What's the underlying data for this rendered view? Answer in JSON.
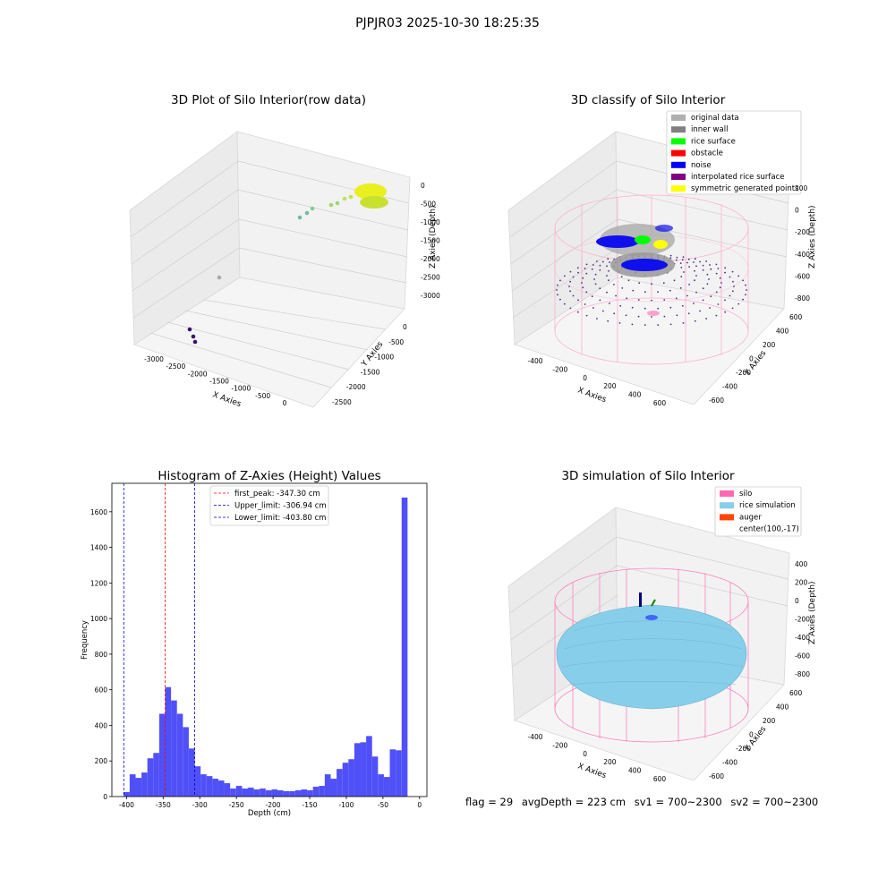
{
  "suptitle": "PJPJR03 2025-10-30 18:25:35",
  "footer": {
    "flag": "flag = 29",
    "avg_depth": "avgDepth = 223 cm",
    "sv1": "sv1 = 700~2300",
    "sv2": "sv2 = 700~2300"
  },
  "colors": {
    "hist_bar": "#5050f8",
    "peak_line": "#ff0000",
    "limit_line": "#0000cc",
    "silo": "#ff69b4",
    "rice": "#87ceeb",
    "noise": "#0000ff",
    "rice_surface": "#00ff00",
    "symmetric": "#ffff00",
    "inner_wall": "#808080",
    "original": "#b0b0b0",
    "interpolated": "#800080",
    "obstacle": "#ff0000",
    "auger": "#ff4500"
  },
  "chart_data": [
    {
      "type": "scatter",
      "title": "3D Plot of Silo Interior(row data)",
      "xlabel": "X Axies",
      "ylabel": "Y Axies",
      "zlabel": "Z Axies (Depth)",
      "x_ticks": [
        "-3000",
        "-2500",
        "-2000",
        "-1500",
        "-1000",
        "-500",
        "0"
      ],
      "y_ticks": [
        "0",
        "-500",
        "-1000",
        "-1500",
        "-2000",
        "-2500"
      ],
      "z_ticks": [
        "0",
        "-500",
        "-1000",
        "-1500",
        "-2000",
        "-2500",
        "-3000"
      ],
      "grid": true
    },
    {
      "type": "scatter",
      "title": "3D classify of Silo Interior",
      "xlabel": "X Axies",
      "ylabel": "Y Axies",
      "zlabel": "Z Axies (Depth)",
      "x_ticks": [
        "-400",
        "-200",
        "0",
        "200",
        "400",
        "600"
      ],
      "y_ticks": [
        "600",
        "400",
        "200",
        "0",
        "-200",
        "-400",
        "-600"
      ],
      "z_ticks": [
        "200",
        "0",
        "-200",
        "-400",
        "-600",
        "-800"
      ],
      "legend": [
        {
          "label": "original data",
          "color": "#b0b0b0"
        },
        {
          "label": "inner wall",
          "color": "#808080"
        },
        {
          "label": "rice surface",
          "color": "#00ff00"
        },
        {
          "label": "obstacle",
          "color": "#ff0000"
        },
        {
          "label": "noise",
          "color": "#0000ff"
        },
        {
          "label": "interpolated rice surface",
          "color": "#800080"
        },
        {
          "label": "symmetric generated points",
          "color": "#ffff00"
        }
      ],
      "legend_position": "top-right",
      "grid": true
    },
    {
      "type": "bar",
      "title": "Histogram of Z-Axies (Height) Values",
      "xlabel": "Depth (cm)",
      "ylabel": "Frequency",
      "xlim": [
        -420,
        10
      ],
      "ylim": [
        0,
        1760
      ],
      "x_ticks": [
        -400,
        -350,
        -300,
        -250,
        -200,
        -150,
        -100,
        -50,
        0
      ],
      "y_ticks": [
        0,
        200,
        400,
        600,
        800,
        1000,
        1200,
        1400,
        1600
      ],
      "bin_width": 8.07,
      "bins_start": [
        -403.8,
        -395.73,
        -387.66,
        -379.59,
        -371.52,
        -363.45,
        -355.38,
        -347.31,
        -339.24,
        -331.17,
        -323.1,
        -315.03,
        -306.96,
        -298.89,
        -290.82,
        -282.75,
        -274.68,
        -266.61,
        -258.54,
        -250.47,
        -242.4,
        -234.33,
        -226.26,
        -218.19,
        -210.12,
        -202.05,
        -193.98,
        -185.91,
        -177.84,
        -169.77,
        -161.7,
        -153.63,
        -145.56,
        -137.49,
        -129.42,
        -121.35,
        -113.28,
        -105.21,
        -97.14,
        -89.07,
        -81.0,
        -72.93,
        -64.86,
        -56.79,
        -48.72,
        -40.65,
        -32.58,
        -24.51,
        -16.44,
        -8.37
      ],
      "values": [
        25,
        125,
        105,
        135,
        215,
        245,
        465,
        615,
        540,
        465,
        390,
        270,
        170,
        125,
        115,
        100,
        90,
        75,
        45,
        60,
        45,
        50,
        40,
        45,
        35,
        40,
        35,
        30,
        30,
        35,
        40,
        35,
        55,
        60,
        125,
        100,
        155,
        190,
        210,
        300,
        305,
        340,
        225,
        125,
        110,
        265,
        260,
        1680,
        0,
        0
      ],
      "annotations": [
        {
          "label": "first_peak: -347.30 cm",
          "x": -347.3,
          "style": "dashed",
          "color": "#ff0000"
        },
        {
          "label": "Upper_limit: -306.94 cm",
          "x": -306.94,
          "style": "dashed",
          "color": "#0000cc"
        },
        {
          "label": "Lower_limit: -403.80 cm",
          "x": -403.8,
          "style": "dashed",
          "color": "#0000cc"
        }
      ],
      "legend_position": "top-center"
    },
    {
      "type": "scatter",
      "title": "3D simulation of Silo Interior",
      "xlabel": "X Axies",
      "ylabel": "Y Axies",
      "zlabel": "Z Axies (Depth)",
      "x_ticks": [
        "-400",
        "-200",
        "0",
        "200",
        "400",
        "600"
      ],
      "y_ticks": [
        "600",
        "400",
        "200",
        "0",
        "-200",
        "-400",
        "-600"
      ],
      "z_ticks": [
        "400",
        "200",
        "0",
        "-200",
        "-400",
        "-600",
        "-800"
      ],
      "legend": [
        {
          "label": "silo",
          "color": "#ff69b4"
        },
        {
          "label": "rice simulation",
          "color": "#87ceeb"
        },
        {
          "label": "auger",
          "color": "#ff4500"
        },
        {
          "label": "center(100,-17)",
          "color": ""
        }
      ],
      "legend_position": "top-right",
      "grid": true
    }
  ]
}
